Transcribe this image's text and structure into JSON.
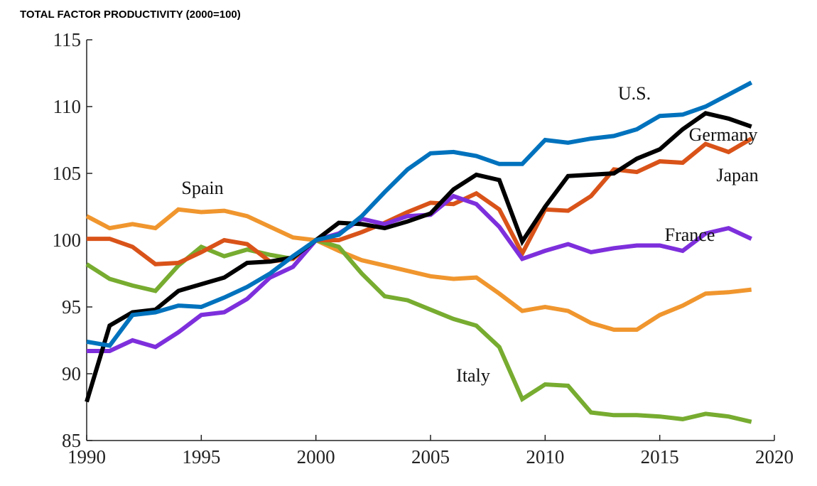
{
  "chart_data": {
    "type": "line",
    "title": "TOTAL FACTOR PRODUCTIVITY (2000=100)",
    "x": [
      1990,
      1991,
      1992,
      1993,
      1994,
      1995,
      1996,
      1997,
      1998,
      1999,
      2000,
      2001,
      2002,
      2003,
      2004,
      2005,
      2006,
      2007,
      2008,
      2009,
      2010,
      2011,
      2012,
      2013,
      2014,
      2015,
      2016,
      2017,
      2018,
      2019
    ],
    "xlim": [
      1990,
      2020
    ],
    "xticks": [
      1990,
      1995,
      2000,
      2005,
      2010,
      2015,
      2020
    ],
    "ylim": [
      85,
      115
    ],
    "yticks": [
      85,
      90,
      95,
      100,
      105,
      110,
      115
    ],
    "series": [
      {
        "name": "Spain",
        "color": "#f0962e",
        "values": [
          101.8,
          100.9,
          101.2,
          100.9,
          102.3,
          102.1,
          102.2,
          101.8,
          101.0,
          100.2,
          100,
          99.2,
          98.5,
          98.1,
          97.7,
          97.3,
          97.1,
          97.2,
          96.0,
          94.7,
          95.0,
          94.7,
          93.8,
          93.3,
          93.3,
          94.4,
          95.1,
          96.0,
          96.1,
          96.3
        ]
      },
      {
        "name": "Italy",
        "color": "#77ac30",
        "values": [
          98.2,
          97.1,
          96.6,
          96.2,
          98.1,
          99.5,
          98.8,
          99.3,
          98.9,
          98.6,
          100,
          99.5,
          97.5,
          95.8,
          95.5,
          94.8,
          94.1,
          93.6,
          92.0,
          88.1,
          89.2,
          89.1,
          87.1,
          86.9,
          86.9,
          86.8,
          86.6,
          87.0,
          86.8,
          86.4
        ]
      },
      {
        "name": "Japan",
        "color": "#d95319",
        "values": [
          100.1,
          100.1,
          99.5,
          98.2,
          98.3,
          99.1,
          100.0,
          99.7,
          98.4,
          98.6,
          100,
          100.0,
          100.6,
          101.3,
          102.1,
          102.8,
          102.7,
          103.5,
          102.3,
          99.0,
          102.3,
          102.2,
          103.3,
          105.3,
          105.1,
          105.9,
          105.8,
          107.2,
          106.6,
          107.6
        ]
      },
      {
        "name": "France",
        "color": "#7e2fdc",
        "values": [
          91.7,
          91.7,
          92.5,
          92.0,
          93.1,
          94.4,
          94.6,
          95.6,
          97.2,
          98.0,
          100,
          100.5,
          101.6,
          101.2,
          101.8,
          101.9,
          103.3,
          102.7,
          101.0,
          98.6,
          99.2,
          99.7,
          99.1,
          99.4,
          99.6,
          99.6,
          99.2,
          100.5,
          100.9,
          100.1
        ]
      },
      {
        "name": "Germany",
        "color": "#000000",
        "values": [
          87.9,
          93.6,
          94.6,
          94.8,
          96.2,
          96.7,
          97.2,
          98.3,
          98.4,
          98.7,
          100,
          101.3,
          101.2,
          100.9,
          101.4,
          102.0,
          103.8,
          104.9,
          104.5,
          99.9,
          102.5,
          104.8,
          104.9,
          105.0,
          106.1,
          106.8,
          108.3,
          109.5,
          109.1,
          108.5
        ]
      },
      {
        "name": "U.S.",
        "color": "#0072bd",
        "values": [
          92.4,
          92.1,
          94.4,
          94.6,
          95.1,
          95.0,
          95.7,
          96.5,
          97.5,
          98.8,
          100,
          100.4,
          101.8,
          103.6,
          105.3,
          106.5,
          106.6,
          106.3,
          105.7,
          105.7,
          107.5,
          107.3,
          107.6,
          107.8,
          108.3,
          109.3,
          109.4,
          110.0,
          110.9,
          111.8
        ]
      }
    ]
  }
}
